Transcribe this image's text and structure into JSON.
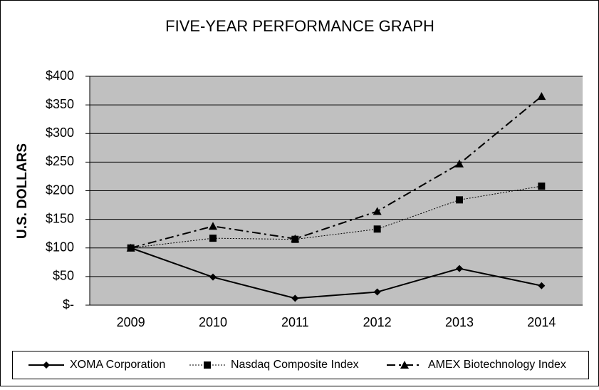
{
  "chart_data": {
    "type": "line",
    "title": "FIVE-YEAR PERFORMANCE GRAPH",
    "y_label": "U.S. DOLLARS",
    "categories": [
      "2009",
      "2010",
      "2011",
      "2012",
      "2013",
      "2014"
    ],
    "series": [
      {
        "name": "XOMA Corporation",
        "color": "#000000",
        "marker": "diamond",
        "line_style": "solid",
        "values": [
          100,
          49,
          12,
          23,
          64,
          34
        ]
      },
      {
        "name": "Nasdaq Composite Index",
        "color": "#000000",
        "marker": "square",
        "line_style": "dotted",
        "values": [
          100,
          117,
          115,
          133,
          184,
          208
        ]
      },
      {
        "name": "AMEX Biotechnology Index",
        "color": "#000000",
        "marker": "triangle",
        "line_style": "dashdot",
        "values": [
          100,
          138,
          116,
          164,
          247,
          365
        ]
      }
    ],
    "ylim": [
      0,
      400
    ],
    "yticks": [
      {
        "value": 0,
        "label": "$-"
      },
      {
        "value": 50,
        "label": "$50"
      },
      {
        "value": 100,
        "label": "$100"
      },
      {
        "value": 150,
        "label": "$150"
      },
      {
        "value": 200,
        "label": "$200"
      },
      {
        "value": 250,
        "label": "$250"
      },
      {
        "value": 300,
        "label": "$300"
      },
      {
        "value": 350,
        "label": "$350"
      },
      {
        "value": 400,
        "label": "$400"
      }
    ],
    "grid": true,
    "plot_background": "#c0c0c0",
    "legend": "bottom"
  }
}
